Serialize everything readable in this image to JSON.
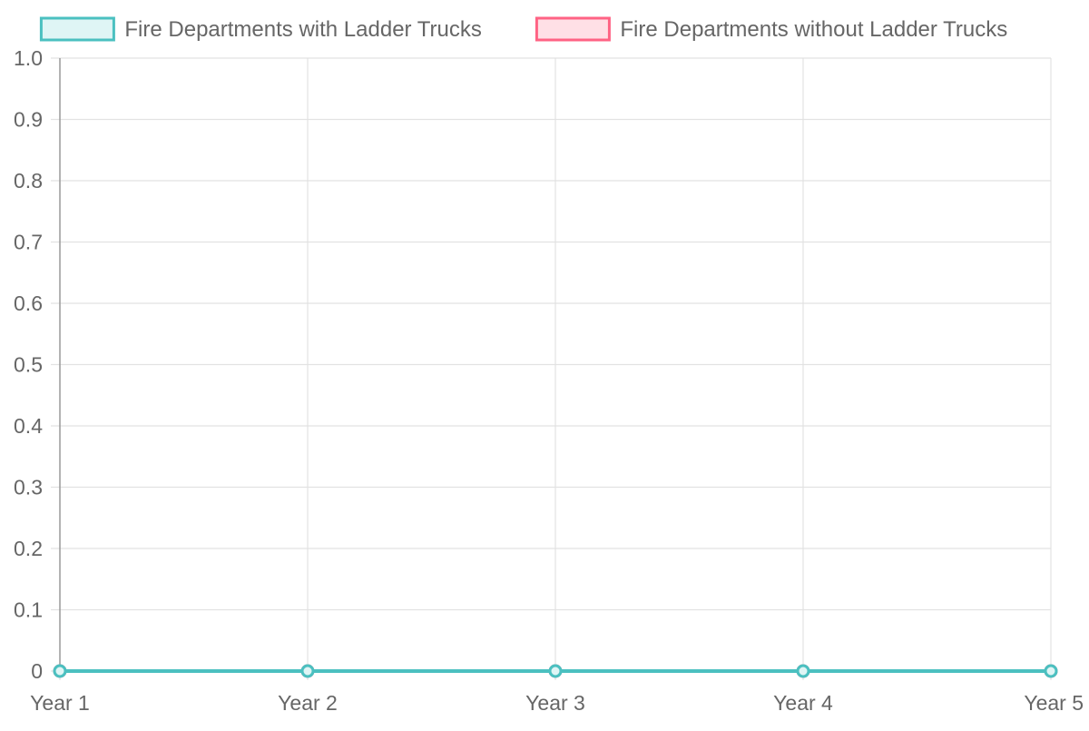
{
  "chart_data": {
    "type": "line",
    "categories": [
      "Year 1",
      "Year 2",
      "Year 3",
      "Year 4",
      "Year 5"
    ],
    "series": [
      {
        "name": "Fire Departments with Ladder Trucks",
        "values": [
          0,
          0,
          0,
          0,
          0
        ],
        "color": "#4bc0c0",
        "fill": "#dff5f5"
      },
      {
        "name": "Fire Departments without Ladder Trucks",
        "values": [
          0,
          0,
          0,
          0,
          0
        ],
        "color": "#ff6384",
        "fill": "#ffe0e6"
      }
    ],
    "y_ticks": [
      "0",
      "0.1",
      "0.2",
      "0.3",
      "0.4",
      "0.5",
      "0.6",
      "0.7",
      "0.8",
      "0.9",
      "1.0"
    ],
    "ylim": [
      0,
      1
    ],
    "grid": true,
    "legend_position": "top"
  }
}
